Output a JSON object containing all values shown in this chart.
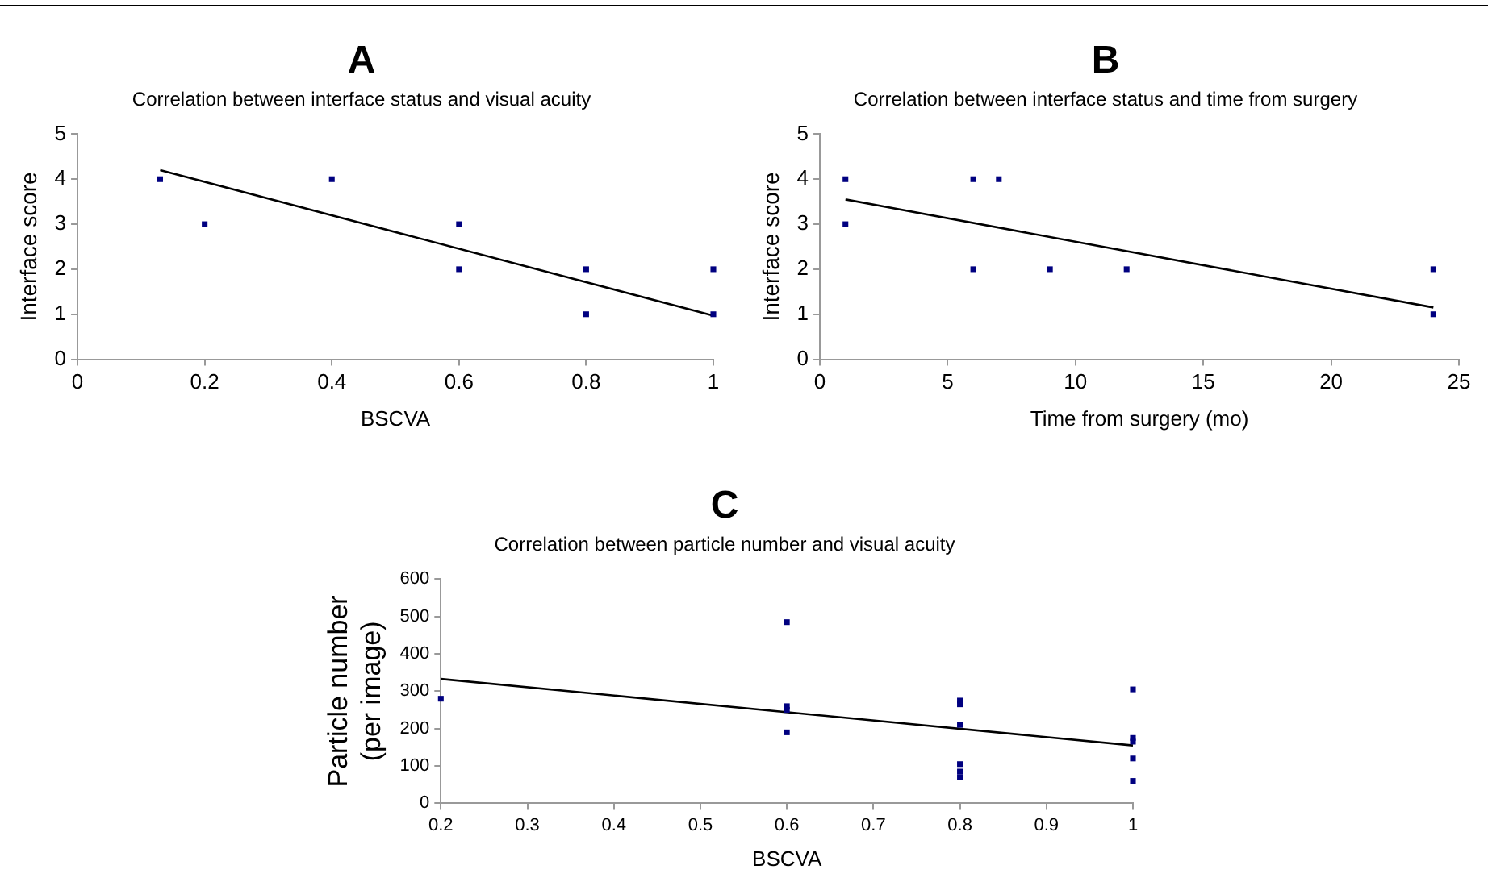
{
  "chart_data": [
    {
      "type": "scatter",
      "title": "A",
      "subtitle": "Correlation between interface status and visual acuity",
      "xlabel": "BSCVA",
      "ylabel": "Interface score",
      "legend": false,
      "grid": false,
      "xlim": [
        0,
        1
      ],
      "xticks": [
        0,
        0.2,
        0.4,
        0.6,
        0.8,
        1
      ],
      "ylim": [
        0,
        5
      ],
      "yticks": [
        0,
        1,
        2,
        3,
        4,
        5
      ],
      "series": [
        {
          "color": "#000080",
          "marker": "square",
          "x": [
            0.13,
            0.2,
            0.4,
            0.6,
            0.6,
            0.8,
            0.8,
            1,
            1
          ],
          "values": [
            4,
            3,
            4,
            3,
            2,
            2,
            1,
            2,
            1
          ]
        },
        {
          "type": "line",
          "marker": "none",
          "color": "#000000",
          "x": [
            0.13,
            1
          ],
          "values": [
            4.2,
            0.97
          ]
        }
      ]
    },
    {
      "type": "scatter",
      "title": "B",
      "subtitle": "Correlation between interface status and time from surgery",
      "xlabel": "Time from surgery (mo)",
      "ylabel": "Interface score",
      "legend": false,
      "grid": false,
      "xlim": [
        0,
        25
      ],
      "xticks": [
        0,
        5,
        10,
        15,
        20,
        25
      ],
      "ylim": [
        0,
        5
      ],
      "yticks": [
        0,
        1,
        2,
        3,
        4,
        5
      ],
      "series": [
        {
          "color": "#000080",
          "marker": "square",
          "x": [
            1,
            1,
            6,
            6,
            7,
            9,
            12,
            24,
            24
          ],
          "values": [
            4,
            3,
            4,
            2,
            4,
            2,
            2,
            2,
            1
          ]
        },
        {
          "type": "line",
          "marker": "none",
          "color": "#000000",
          "x": [
            1,
            24
          ],
          "values": [
            3.55,
            1.15
          ]
        }
      ]
    },
    {
      "type": "scatter",
      "title": "C",
      "subtitle": "Correlation between particle number and visual acuity",
      "xlabel": "BSCVA",
      "ylabel": "Particle number (per image)",
      "legend": false,
      "grid": false,
      "xlim": [
        0.2,
        1
      ],
      "xticks": [
        0.2,
        0.3,
        0.4,
        0.5,
        0.6,
        0.7,
        0.8,
        0.9,
        1
      ],
      "ylim": [
        0,
        600
      ],
      "yticks": [
        0,
        100,
        200,
        300,
        400,
        500,
        600
      ],
      "series": [
        {
          "color": "#000080",
          "marker": "square",
          "x": [
            0.2,
            0.6,
            0.6,
            0.6,
            0.6,
            0.8,
            0.8,
            0.8,
            0.8,
            0.8,
            0.8,
            1,
            1,
            1,
            1,
            1
          ],
          "values": [
            280,
            485,
            260,
            250,
            190,
            275,
            265,
            210,
            105,
            85,
            70,
            305,
            175,
            165,
            120,
            60
          ]
        },
        {
          "type": "line",
          "marker": "none",
          "color": "#000000",
          "x": [
            0.2,
            1
          ],
          "values": [
            333,
            155
          ]
        }
      ]
    }
  ]
}
